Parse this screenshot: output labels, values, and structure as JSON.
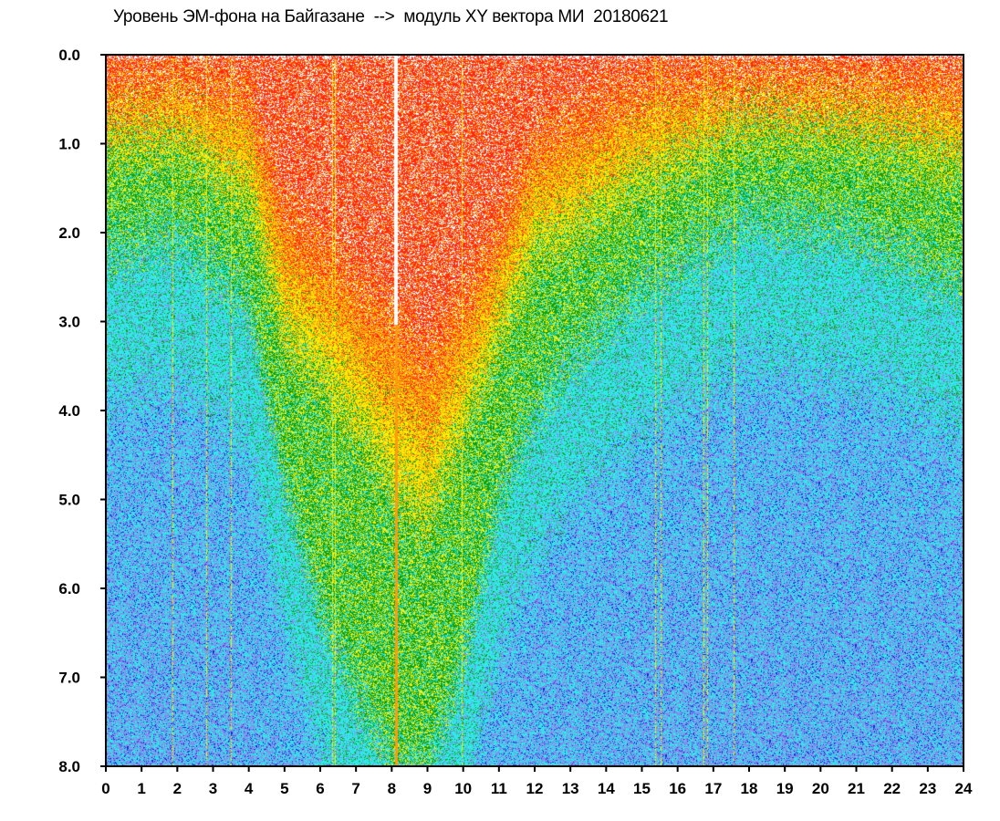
{
  "chart_data": {
    "type": "heatmap",
    "title": "Уровень ЭМ-фона на Байгазане  -->  модуль XY вектора МИ  20180621",
    "xlabel": "",
    "ylabel": "",
    "xlim": [
      0,
      24
    ],
    "ylim": [
      0.0,
      8.0
    ],
    "y_inverted": true,
    "grid": false,
    "x_ticks": [
      "0",
      "1",
      "2",
      "3",
      "4",
      "5",
      "6",
      "7",
      "8",
      "9",
      "10",
      "11",
      "12",
      "13",
      "14",
      "15",
      "16",
      "17",
      "18",
      "19",
      "20",
      "21",
      "22",
      "23",
      "24"
    ],
    "y_ticks": [
      "0.0",
      "1.0",
      "2.0",
      "3.0",
      "4.0",
      "5.0",
      "6.0",
      "7.0",
      "8.0"
    ],
    "colors": {
      "level_1": "#ff2a10",
      "level_2": "#ff9a10",
      "level_3": "#ffee00",
      "level_4": "#10a010",
      "level_5": "#30e8e8",
      "level_6": "#8888ee",
      "level_7": "#2222dd"
    },
    "description_series": [
      {
        "hour": 0,
        "red_to": 0.4,
        "yellow_to": 1.0,
        "green_to": 2.2
      },
      {
        "hour": 2,
        "red_to": 0.3,
        "yellow_to": 1.0,
        "green_to": 2.0
      },
      {
        "hour": 4,
        "red_to": 0.5,
        "yellow_to": 1.6,
        "green_to": 2.8
      },
      {
        "hour": 5,
        "red_to": 1.8,
        "yellow_to": 3.2,
        "green_to": 4.8
      },
      {
        "hour": 6,
        "red_to": 2.2,
        "yellow_to": 3.6,
        "green_to": 6.2
      },
      {
        "hour": 7,
        "red_to": 2.6,
        "yellow_to": 4.2,
        "green_to": 7.2
      },
      {
        "hour": 8,
        "red_to": 3.0,
        "yellow_to": 4.8,
        "green_to": 8.0
      },
      {
        "hour": 9,
        "red_to": 3.4,
        "yellow_to": 5.2,
        "green_to": 8.0
      },
      {
        "hour": 10,
        "red_to": 2.8,
        "yellow_to": 4.2,
        "green_to": 6.8
      },
      {
        "hour": 11,
        "red_to": 2.0,
        "yellow_to": 3.2,
        "green_to": 5.0
      },
      {
        "hour": 12,
        "red_to": 1.0,
        "yellow_to": 2.2,
        "green_to": 4.0
      },
      {
        "hour": 13,
        "red_to": 0.8,
        "yellow_to": 2.0,
        "green_to": 3.4
      },
      {
        "hour": 15,
        "red_to": 0.4,
        "yellow_to": 1.4,
        "green_to": 2.6
      },
      {
        "hour": 18,
        "red_to": 0.3,
        "yellow_to": 0.8,
        "green_to": 1.8
      },
      {
        "hour": 21,
        "red_to": 0.3,
        "yellow_to": 0.9,
        "green_to": 2.0
      },
      {
        "hour": 24,
        "red_to": 0.4,
        "yellow_to": 1.2,
        "green_to": 2.6
      }
    ]
  }
}
